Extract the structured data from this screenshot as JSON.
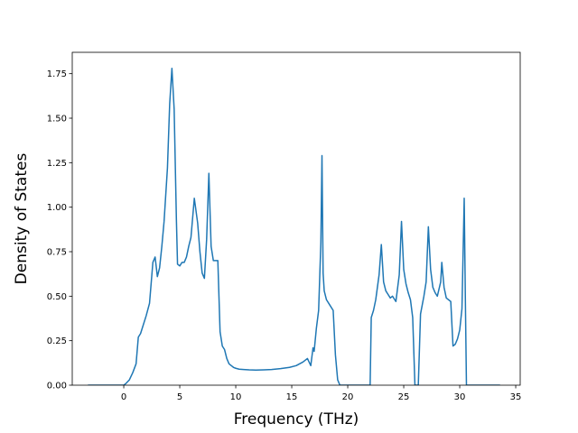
{
  "chart_data": {
    "type": "line",
    "title": "",
    "xlabel": "Frequency (THz)",
    "ylabel": "Density of States",
    "xlim": [
      -4.6,
      35.4
    ],
    "ylim": [
      0,
      1.87
    ],
    "grid": false,
    "colors": {
      "line": "#1f77b4"
    },
    "xticks": [
      0,
      5,
      10,
      15,
      20,
      25,
      30,
      35
    ],
    "xtick_labels": [
      "0",
      "5",
      "10",
      "15",
      "20",
      "25",
      "30",
      "35"
    ],
    "yticks": [
      0,
      0.25,
      0.5,
      0.75,
      1.0,
      1.25,
      1.5,
      1.75
    ],
    "ytick_labels": [
      "0.00",
      "0.25",
      "0.50",
      "0.75",
      "1.00",
      "1.25",
      "1.50",
      "1.75"
    ],
    "series": [
      {
        "x": [
          -3.2,
          -2.0,
          -1.0,
          0.0,
          0.2,
          0.5,
          0.8,
          1.1,
          1.3,
          1.5,
          1.7,
          2.0,
          2.3,
          2.6,
          2.8,
          3.0,
          3.2,
          3.4,
          3.6,
          3.9,
          4.1,
          4.3,
          4.5,
          4.7,
          4.8,
          5.0,
          5.2,
          5.4,
          5.6,
          5.8,
          6.0,
          6.3,
          6.6,
          6.8,
          7.0,
          7.2,
          7.4,
          7.6,
          7.8,
          8.0,
          8.2,
          8.4,
          8.6,
          8.8,
          9.0,
          9.2,
          9.4,
          9.6,
          9.8,
          10.0,
          10.3,
          10.7,
          11.2,
          11.8,
          12.5,
          13.2,
          14.0,
          14.8,
          15.4,
          16.0,
          16.4,
          16.7,
          16.9,
          17.0,
          17.2,
          17.4,
          17.6,
          17.7,
          17.8,
          17.9,
          18.1,
          18.4,
          18.7,
          18.9,
          19.1,
          19.3,
          19.6,
          20.0,
          21.0,
          22.0,
          22.1,
          22.3,
          22.5,
          22.8,
          23.0,
          23.2,
          23.4,
          23.6,
          23.8,
          24.0,
          24.3,
          24.6,
          24.8,
          25.0,
          25.2,
          25.4,
          25.6,
          25.8,
          26.0,
          26.1,
          26.3,
          26.5,
          26.8,
          27.0,
          27.2,
          27.4,
          27.6,
          27.8,
          28.0,
          28.3,
          28.4,
          28.6,
          28.8,
          29.2,
          29.4,
          29.6,
          29.8,
          30.0,
          30.2,
          30.4,
          30.5,
          30.6,
          30.7,
          31.0,
          32.0,
          33.6
        ],
        "y": [
          0.0,
          0.0,
          0.0,
          0.0,
          0.01,
          0.03,
          0.07,
          0.12,
          0.27,
          0.29,
          0.33,
          0.39,
          0.46,
          0.69,
          0.72,
          0.61,
          0.66,
          0.78,
          0.92,
          1.22,
          1.58,
          1.78,
          1.55,
          0.93,
          0.68,
          0.67,
          0.69,
          0.69,
          0.72,
          0.78,
          0.83,
          1.05,
          0.91,
          0.75,
          0.63,
          0.6,
          0.82,
          1.19,
          0.78,
          0.7,
          0.7,
          0.7,
          0.3,
          0.22,
          0.2,
          0.15,
          0.12,
          0.11,
          0.1,
          0.095,
          0.09,
          0.088,
          0.086,
          0.085,
          0.086,
          0.088,
          0.093,
          0.1,
          0.11,
          0.13,
          0.15,
          0.11,
          0.21,
          0.19,
          0.32,
          0.42,
          0.8,
          1.29,
          0.63,
          0.53,
          0.48,
          0.45,
          0.42,
          0.17,
          0.03,
          0.0,
          0.0,
          0.0,
          0.0,
          0.0,
          0.38,
          0.42,
          0.48,
          0.62,
          0.79,
          0.58,
          0.53,
          0.51,
          0.49,
          0.5,
          0.47,
          0.62,
          0.92,
          0.65,
          0.57,
          0.52,
          0.48,
          0.38,
          0.0,
          0.0,
          0.0,
          0.4,
          0.5,
          0.58,
          0.89,
          0.65,
          0.55,
          0.52,
          0.5,
          0.58,
          0.69,
          0.55,
          0.49,
          0.47,
          0.22,
          0.23,
          0.26,
          0.31,
          0.43,
          1.05,
          0.5,
          0.0,
          0.0,
          0.0,
          0.0,
          0.0
        ]
      }
    ]
  }
}
